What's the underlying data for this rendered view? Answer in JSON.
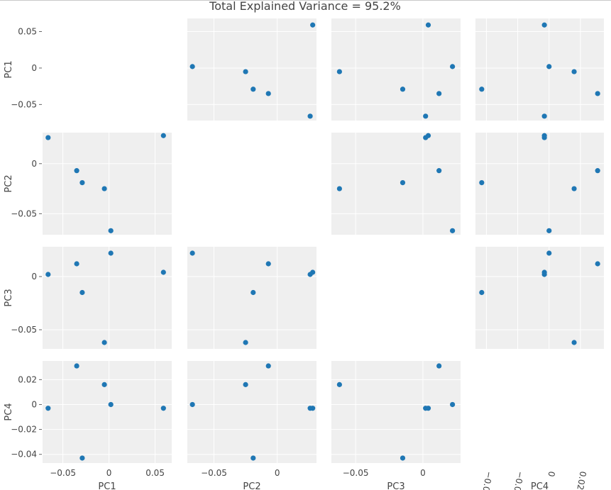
{
  "chart_data": {
    "type": "scatter",
    "title": "Total Explained Variance = 95.2%",
    "variables": [
      "PC1",
      "PC2",
      "PC3",
      "PC4"
    ],
    "points": {
      "PC1": [
        0.002,
        -0.005,
        0.059,
        -0.066,
        -0.029,
        -0.035
      ],
      "PC2": [
        -0.067,
        -0.025,
        0.028,
        0.026,
        -0.019,
        -0.007
      ],
      "PC3": [
        0.022,
        -0.062,
        0.004,
        0.002,
        -0.015,
        0.012
      ],
      "PC4": [
        0.0,
        0.016,
        -0.003,
        -0.003,
        -0.043,
        0.031
      ]
    },
    "ranges": {
      "PC1": [
        -0.072,
        0.068
      ],
      "PC2": [
        -0.071,
        0.031
      ],
      "PC3": [
        -0.068,
        0.028
      ],
      "PC4": [
        -0.047,
        0.035
      ]
    },
    "tick_labels": {
      "PC1": [
        {
          "v": -0.05,
          "t": "−0.05"
        },
        {
          "v": 0,
          "t": "0"
        },
        {
          "v": 0.05,
          "t": "0.05"
        }
      ],
      "PC2": [
        {
          "v": -0.05,
          "t": "−0.05"
        },
        {
          "v": 0,
          "t": "0"
        }
      ],
      "PC3": [
        {
          "v": -0.05,
          "t": "−0.05"
        },
        {
          "v": 0,
          "t": "0"
        }
      ],
      "PC4": [
        {
          "v": -0.04,
          "t": "−0.04"
        },
        {
          "v": -0.02,
          "t": "−0.02"
        },
        {
          "v": 0,
          "t": "0"
        },
        {
          "v": 0.02,
          "t": "0.02"
        }
      ]
    },
    "pc4_bottom_ticks": [
      {
        "v": -0.04,
        "t": "−0.0"
      },
      {
        "v": -0.02,
        "t": "−0.0"
      },
      {
        "v": 0,
        "t": "0"
      },
      {
        "v": 0.02,
        "t": "0.02"
      }
    ],
    "marker_color": "#1f77b4",
    "panel_background": "#efefef",
    "grid": true,
    "diagonal": "hidden",
    "legend": "none"
  }
}
